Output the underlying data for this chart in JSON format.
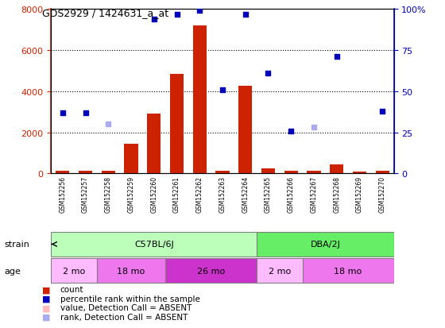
{
  "title": "GDS2929 / 1424631_a_at",
  "samples": [
    "GSM152256",
    "GSM152257",
    "GSM152258",
    "GSM152259",
    "GSM152260",
    "GSM152261",
    "GSM152262",
    "GSM152263",
    "GSM152264",
    "GSM152265",
    "GSM152266",
    "GSM152267",
    "GSM152268",
    "GSM152269",
    "GSM152270"
  ],
  "count_values": [
    120,
    130,
    115,
    1450,
    2900,
    4850,
    7200,
    130,
    4280,
    250,
    115,
    120,
    430,
    110,
    125
  ],
  "count_absent": [
    false,
    false,
    false,
    false,
    false,
    false,
    false,
    false,
    false,
    false,
    false,
    false,
    false,
    false,
    false
  ],
  "rank_values": [
    37,
    37,
    30,
    null,
    94,
    97,
    99,
    51,
    97,
    61,
    26,
    28,
    71,
    null,
    38
  ],
  "rank_absent": [
    false,
    false,
    true,
    false,
    false,
    false,
    false,
    false,
    false,
    false,
    false,
    true,
    false,
    false,
    false
  ],
  "ylim_left": [
    0,
    8000
  ],
  "ylim_right": [
    0,
    100
  ],
  "left_ticks": [
    0,
    2000,
    4000,
    6000,
    8000
  ],
  "right_ticks": [
    0,
    25,
    50,
    75,
    100
  ],
  "right_tick_labels": [
    "0",
    "25",
    "50",
    "75",
    "100%"
  ],
  "left_color": "#cc2200",
  "right_color": "#0000bb",
  "bar_color": "#cc2200",
  "bar_absent_color": "#ffbbbb",
  "rank_color": "#0000bb",
  "rank_absent_color": "#aaaaee",
  "strain_groups": [
    {
      "label": "C57BL/6J",
      "start": 0,
      "end": 8,
      "color": "#bbffbb"
    },
    {
      "label": "DBA/2J",
      "start": 9,
      "end": 14,
      "color": "#66ee66"
    }
  ],
  "age_groups": [
    {
      "label": "2 mo",
      "start": 0,
      "end": 1,
      "color": "#ffbbff"
    },
    {
      "label": "18 mo",
      "start": 2,
      "end": 4,
      "color": "#ee77ee"
    },
    {
      "label": "26 mo",
      "start": 5,
      "end": 8,
      "color": "#dd44dd"
    },
    {
      "label": "2 mo",
      "start": 9,
      "end": 10,
      "color": "#ffbbff"
    },
    {
      "label": "18 mo",
      "start": 11,
      "end": 14,
      "color": "#ee77ee"
    }
  ],
  "legend_items": [
    {
      "label": "count",
      "color": "#cc2200"
    },
    {
      "label": "percentile rank within the sample",
      "color": "#0000bb"
    },
    {
      "label": "value, Detection Call = ABSENT",
      "color": "#ffbbbb"
    },
    {
      "label": "rank, Detection Call = ABSENT",
      "color": "#aaaaee"
    }
  ],
  "background_color": "#ffffff",
  "tick_area_color": "#cccccc"
}
